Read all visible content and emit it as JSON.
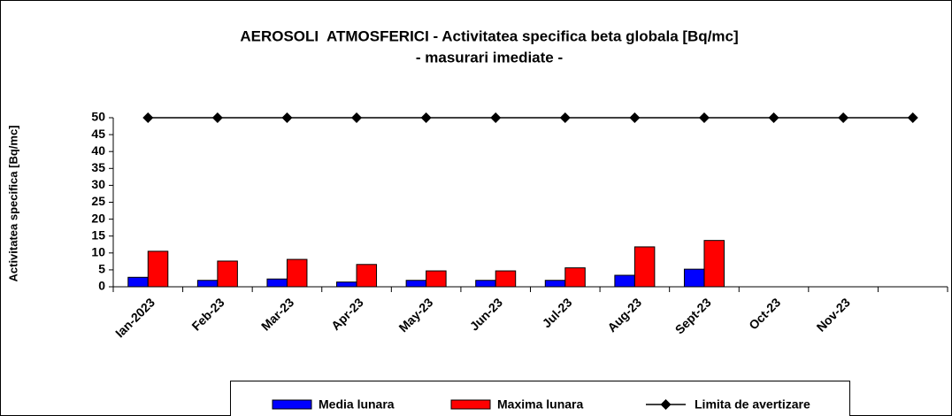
{
  "chart_data": {
    "type": "bar",
    "title": "AEROSOLI  ATMOSFERICI - Activitatea specifica beta globala [Bq/mc]",
    "subtitle": "- masurari imediate -",
    "y_label": "Activitatea specifica [Bq/mc]",
    "categories": [
      "Ian-2023",
      "Feb-23",
      "Mar-23",
      "Apr-23",
      "May-23",
      "Jun-23",
      "Jul-23",
      "Aug-23",
      "Sept-23",
      "Oct-23",
      "Nov-23",
      null
    ],
    "series": [
      {
        "name": "Media lunara",
        "type": "bar",
        "color": "#0000ff",
        "values": [
          2.8,
          1.9,
          2.3,
          1.4,
          1.9,
          1.9,
          1.9,
          3.4,
          5.2,
          null,
          null,
          null
        ]
      },
      {
        "name": "Maxima lunara",
        "type": "bar",
        "color": "#ff0000",
        "values": [
          10.5,
          7.6,
          8.1,
          6.6,
          4.7,
          4.7,
          5.6,
          11.8,
          13.7,
          null,
          null,
          null
        ]
      },
      {
        "name": "Limita de avertizare",
        "type": "line",
        "color": "#000000",
        "values": [
          50,
          50,
          50,
          50,
          50,
          50,
          50,
          50,
          50,
          50,
          50,
          50
        ]
      }
    ],
    "ylim": [
      0,
      50
    ],
    "yticks": [
      0,
      5,
      10,
      15,
      20,
      25,
      30,
      35,
      40,
      45,
      50
    ],
    "grid": false,
    "legend": "bottom"
  }
}
